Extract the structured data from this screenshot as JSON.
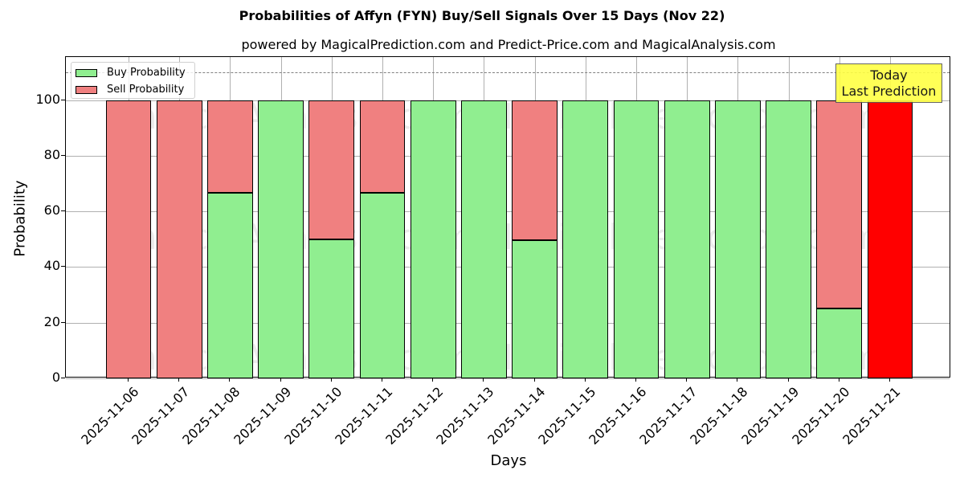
{
  "chart_data": {
    "type": "bar",
    "stacked": true,
    "title": "Probabilities of Affyn (FYN) Buy/Sell Signals Over 15 Days (Nov 22)",
    "subtitle": "powered by MagicalPrediction.com and Predict-Price.com and MagicalAnalysis.com",
    "xlabel": "Days",
    "ylabel": "Probability",
    "ylim": [
      0,
      115.5
    ],
    "yticks": [
      0,
      20,
      40,
      60,
      80,
      100
    ],
    "grid": true,
    "legend_position": "upper left",
    "reference_line": {
      "y": 110,
      "style": "dashed",
      "color": "#808080"
    },
    "categories": [
      "2025-11-06",
      "2025-11-07",
      "2025-11-08",
      "2025-11-09",
      "2025-11-10",
      "2025-11-11",
      "2025-11-12",
      "2025-11-13",
      "2025-11-14",
      "2025-11-15",
      "2025-11-16",
      "2025-11-17",
      "2025-11-18",
      "2025-11-19",
      "2025-11-20",
      "2025-11-21"
    ],
    "series": [
      {
        "name": "Buy Probability",
        "color": "#90ee90",
        "values": [
          0,
          0,
          66.67,
          100,
          50,
          66.67,
          100,
          100,
          49.7,
          100,
          100,
          100,
          100,
          100,
          25,
          0
        ]
      },
      {
        "name": "Sell Probability",
        "color": "#f08080",
        "values": [
          100,
          100,
          33.33,
          0,
          50,
          33.33,
          0,
          0,
          50.3,
          0,
          0,
          0,
          0,
          0,
          75,
          100
        ]
      }
    ],
    "highlight": {
      "category": "2025-11-21",
      "color": "#ff0000",
      "annotation": "Today\nLast Prediction"
    },
    "watermarks": [
      "MagicalAnalysis.com",
      "MagicalPrediction.com"
    ]
  },
  "legend": {
    "buy_label": "Buy Probability",
    "sell_label": "Sell Probability"
  },
  "annotation": {
    "line1": "Today",
    "line2": "Last Prediction"
  },
  "colors": {
    "buy": "#90ee90",
    "sell": "#f08080",
    "today": "#ff0000",
    "annotation_bg": "#ffff44"
  }
}
